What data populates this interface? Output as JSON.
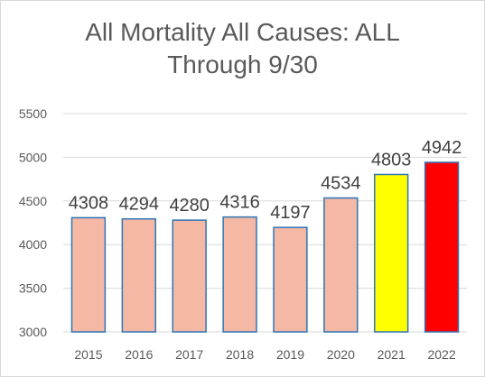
{
  "chart_data": {
    "type": "bar",
    "title_line1": "All Mortality All Causes: ALL",
    "title_line2": "Through 9/30",
    "categories": [
      "2015",
      "2016",
      "2017",
      "2018",
      "2019",
      "2020",
      "2021",
      "2022"
    ],
    "values": [
      4308,
      4294,
      4280,
      4316,
      4197,
      4534,
      4803,
      4942
    ],
    "data_labels": [
      "4308",
      "4294",
      "4280",
      "4316",
      "4197",
      "4534",
      "4803",
      "4942"
    ],
    "bar_colors": [
      "#f4b8a5",
      "#f4b8a5",
      "#f4b8a5",
      "#f4b8a5",
      "#f4b8a5",
      "#f4b8a5",
      "#ffff00",
      "#ff0000"
    ],
    "bar_border_color": "#2e75b6",
    "ylim": [
      3000,
      5500
    ],
    "yticks": [
      3000,
      3500,
      4000,
      4500,
      5000,
      5500
    ],
    "ytick_labels": [
      "3000",
      "3500",
      "4000",
      "4500",
      "5000",
      "5500"
    ],
    "grid": true,
    "legend": "none",
    "xlabel": "",
    "ylabel": ""
  }
}
